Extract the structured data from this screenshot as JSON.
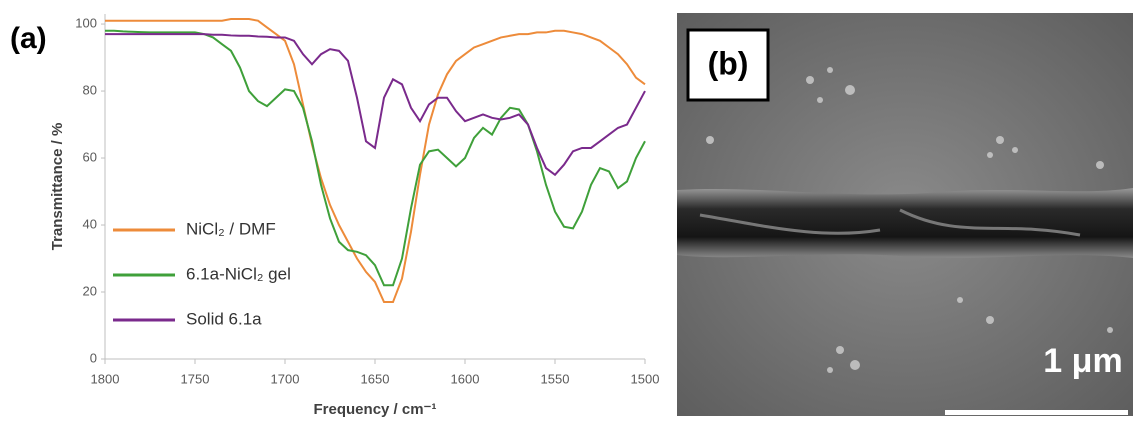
{
  "panel_labels": [
    "(a)",
    "(b)"
  ],
  "scale_bar": "1 μm",
  "chart_data": {
    "type": "line",
    "xlabel": "Frequency / cm⁻¹",
    "ylabel": "Transmittance / %",
    "xlim": [
      1800,
      1500
    ],
    "ylim": [
      0,
      103
    ],
    "xticks": [
      1800,
      1750,
      1700,
      1650,
      1600,
      1550,
      1500
    ],
    "yticks": [
      0,
      20,
      40,
      60,
      80,
      100
    ],
    "legend": "lower left",
    "x": [
      1800,
      1795,
      1790,
      1785,
      1780,
      1775,
      1770,
      1765,
      1760,
      1755,
      1750,
      1745,
      1740,
      1735,
      1730,
      1725,
      1720,
      1715,
      1710,
      1705,
      1700,
      1695,
      1690,
      1685,
      1680,
      1675,
      1670,
      1665,
      1660,
      1655,
      1650,
      1645,
      1640,
      1635,
      1630,
      1625,
      1620,
      1615,
      1610,
      1605,
      1600,
      1595,
      1590,
      1585,
      1580,
      1575,
      1570,
      1565,
      1560,
      1555,
      1550,
      1545,
      1540,
      1535,
      1530,
      1525,
      1520,
      1515,
      1510,
      1505,
      1500
    ],
    "series": [
      {
        "name": "NiCl₂ / DMF",
        "color": "#ed8b3a",
        "values": [
          101,
          101,
          101,
          101,
          101,
          101,
          101,
          101,
          101,
          101,
          101,
          101,
          101,
          101,
          101.5,
          101.5,
          101.5,
          101,
          99,
          97,
          95,
          88,
          76,
          64,
          54,
          46,
          40,
          35,
          30,
          26,
          23,
          17,
          17,
          24,
          38,
          55,
          70,
          79,
          85,
          89,
          91,
          93,
          94,
          95,
          96,
          96.5,
          97,
          97,
          97.5,
          97.5,
          98,
          98,
          97.5,
          97,
          96,
          95,
          93,
          91,
          88,
          84,
          82
        ]
      },
      {
        "name": "6.1a-NiCl₂ gel",
        "color": "#3fa03a",
        "values": [
          98,
          98,
          97.8,
          97.7,
          97.6,
          97.5,
          97.5,
          97.5,
          97.5,
          97.5,
          97.5,
          97,
          96,
          94,
          92,
          87,
          80,
          77,
          75.5,
          78,
          80.5,
          80,
          75,
          65,
          52,
          42,
          35,
          32.5,
          32,
          31,
          28,
          22,
          22,
          30,
          45,
          58,
          62,
          62.5,
          60,
          57.5,
          60,
          66,
          69,
          67,
          72,
          75,
          74.5,
          70,
          62,
          52,
          44,
          39.5,
          39,
          44,
          52,
          57,
          56,
          51,
          53,
          60,
          65
        ]
      },
      {
        "name": "Solid 6.1a",
        "color": "#7a2a8c",
        "values": [
          97,
          97,
          97,
          97,
          97,
          97,
          97,
          97,
          97,
          97,
          97,
          97,
          96.8,
          96.8,
          96.6,
          96.5,
          96.5,
          96.3,
          96.2,
          96,
          96,
          95,
          91,
          88,
          91,
          92.5,
          92,
          89,
          78,
          65,
          63,
          78,
          83.5,
          82,
          75,
          71,
          76,
          78,
          78,
          74,
          71,
          72,
          73,
          72,
          71.5,
          72,
          73,
          70,
          63,
          57,
          55,
          58,
          62,
          63,
          63,
          65,
          67,
          69,
          70,
          75,
          80
        ]
      }
    ]
  }
}
